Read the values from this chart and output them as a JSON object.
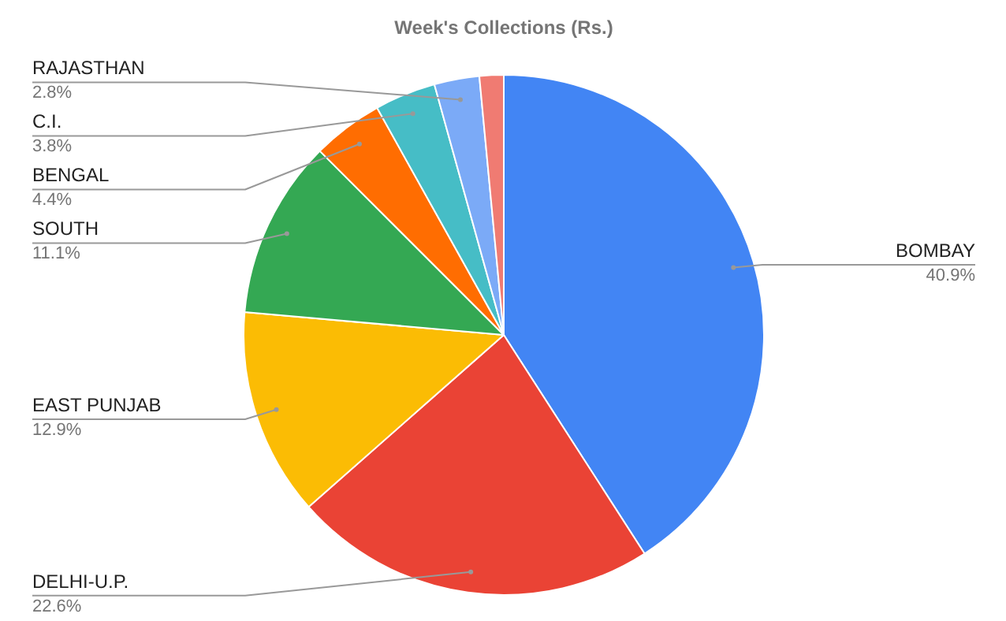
{
  "chart_data": {
    "type": "pie",
    "title": "Week's Collections (Rs.)",
    "categories": [
      "BOMBAY",
      "DELHI-U.P.",
      "EAST PUNJAB",
      "SOUTH",
      "BENGAL",
      "C.I.",
      "RAJASTHAN",
      null
    ],
    "values": [
      40.9,
      22.6,
      12.9,
      11.1,
      4.4,
      3.8,
      2.8,
      1.5
    ],
    "colors": [
      "#4285f4",
      "#ea4335",
      "#fbbc04",
      "#34a853",
      "#ff6d01",
      "#46bdc6",
      "#7baaf7",
      "#f07b72"
    ],
    "value_labels": [
      "40.9%",
      "22.6%",
      "12.9%",
      "11.1%",
      "4.4%",
      "3.8%",
      "2.8%",
      null
    ]
  }
}
